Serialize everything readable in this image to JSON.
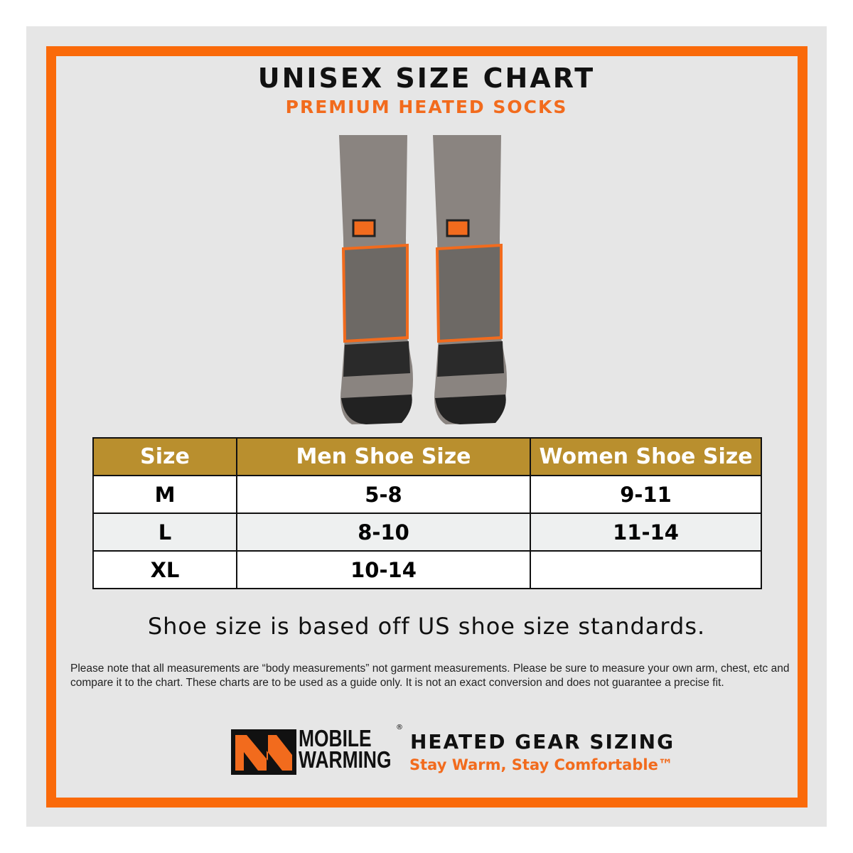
{
  "header": {
    "title": "UNISEX SIZE CHART",
    "subtitle": "PREMIUM HEATED SOCKS"
  },
  "table": {
    "columns": [
      "Size",
      "Men Shoe Size",
      "Women Shoe Size"
    ],
    "rows": [
      [
        "M",
        "5-8",
        "9-11"
      ],
      [
        "L",
        "8-10",
        "11-14"
      ],
      [
        "XL",
        "10-14",
        ""
      ]
    ]
  },
  "standard_note": "Shoe size is based off US shoe size standards.",
  "disclaimer": "Please note that all measurements are “body measurements” not garment measurements. Please be sure to measure your own arm, chest, etc and compare it to the chart. These charts are to be used as a guide only. It is not an exact conversion and does not guarantee a precise fit.",
  "footer": {
    "brand_line1": "MOBILE",
    "brand_line2": "WARMING",
    "registered": "®",
    "heading": "HEATED GEAR SIZING",
    "tagline": "Stay Warm, Stay Comfortable™"
  },
  "colors": {
    "orange": "#fa6a0a",
    "gold": "#b98f2e",
    "panel": "#e6e6e6"
  }
}
